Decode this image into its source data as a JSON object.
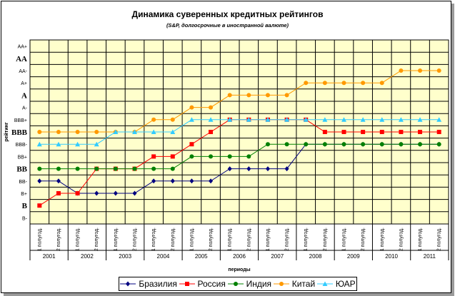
{
  "chart_data": {
    "type": "line",
    "title": "Динамика суверенных кредитных рейтингов",
    "subtitle": "(S&P, долгосрочные в иностранной валюте)",
    "xlabel": "периоды",
    "ylabel": "рейтинг",
    "y_categories": [
      "B-",
      "B",
      "B+",
      "BB-",
      "BB",
      "BB+",
      "BBB-",
      "BBB",
      "BBB+",
      "A-",
      "A",
      "A+",
      "AA-",
      "AA",
      "AA+"
    ],
    "y_emphasized": [
      "B",
      "BB",
      "BBB",
      "A",
      "AA"
    ],
    "x_periods": [
      "1 полугод.",
      "2 полугод.",
      "1 полугод.",
      "2 полугод.",
      "1 полугод.",
      "2 полугод.",
      "1 полугод.",
      "2 полугод.",
      "1 полугод.",
      "2 полугод.",
      "1 полугод.",
      "2 полугод.",
      "1 полугод.",
      "2 полугод.",
      "1 полугод.",
      "2 полугод.",
      "1 полугод.",
      "2 полугод.",
      "1 полугод.",
      "2 полугод.",
      "1 полугод.",
      "2 полугод."
    ],
    "x_years": [
      "2001",
      "2002",
      "2003",
      "2004",
      "2005",
      "2006",
      "2007",
      "2008",
      "2009",
      "2010",
      "2011"
    ],
    "grid": true,
    "legend_position": "bottom",
    "series": [
      {
        "name": "Бразилия",
        "color": "#000080",
        "marker": "diamond",
        "values": [
          "BB-",
          "BB-",
          "B+",
          "B+",
          "B+",
          "B+",
          "BB-",
          "BB-",
          "BB-",
          "BB-",
          "BB",
          "BB",
          "BB",
          "BB",
          "BBB-",
          "BBB-",
          "BBB-",
          "BBB-",
          "BBB-",
          "BBB-",
          "BBB-",
          "BBB-"
        ]
      },
      {
        "name": "Россия",
        "color": "#FF0000",
        "marker": "square",
        "values": [
          "B",
          "B+",
          "B+",
          "BB",
          "BB",
          "BB",
          "BB+",
          "BB+",
          "BBB-",
          "BBB",
          "BBB+",
          "BBB+",
          "BBB+",
          "BBB+",
          "BBB+",
          "BBB",
          "BBB",
          "BBB",
          "BBB",
          "BBB",
          "BBB",
          "BBB"
        ]
      },
      {
        "name": "Индия",
        "color": "#008000",
        "marker": "circle",
        "values": [
          "BB",
          "BB",
          "BB",
          "BB",
          "BB",
          "BB",
          "BB",
          "BB",
          "BB+",
          "BB+",
          "BB+",
          "BB+",
          "BBB-",
          "BBB-",
          "BBB-",
          "BBB-",
          "BBB-",
          "BBB-",
          "BBB-",
          "BBB-",
          "BBB-",
          "BBB-"
        ]
      },
      {
        "name": "Китай",
        "color": "#FF9900",
        "marker": "circle",
        "values": [
          "BBB",
          "BBB",
          "BBB",
          "BBB",
          "BBB",
          "BBB",
          "BBB+",
          "BBB+",
          "A-",
          "A-",
          "A",
          "A",
          "A",
          "A",
          "A+",
          "A+",
          "A+",
          "A+",
          "A+",
          "AA-",
          "AA-",
          "AA-"
        ]
      },
      {
        "name": "ЮАР",
        "color": "#33CCFF",
        "marker": "triangle",
        "values": [
          "BBB-",
          "BBB-",
          "BBB-",
          "BBB-",
          "BBB",
          "BBB",
          "BBB",
          "BBB",
          "BBB+",
          "BBB+",
          "BBB+",
          "BBB+",
          "BBB+",
          "BBB+",
          "BBB+",
          "BBB+",
          "BBB+",
          "BBB+",
          "BBB+",
          "BBB+",
          "BBB+",
          "BBB+"
        ]
      }
    ]
  }
}
